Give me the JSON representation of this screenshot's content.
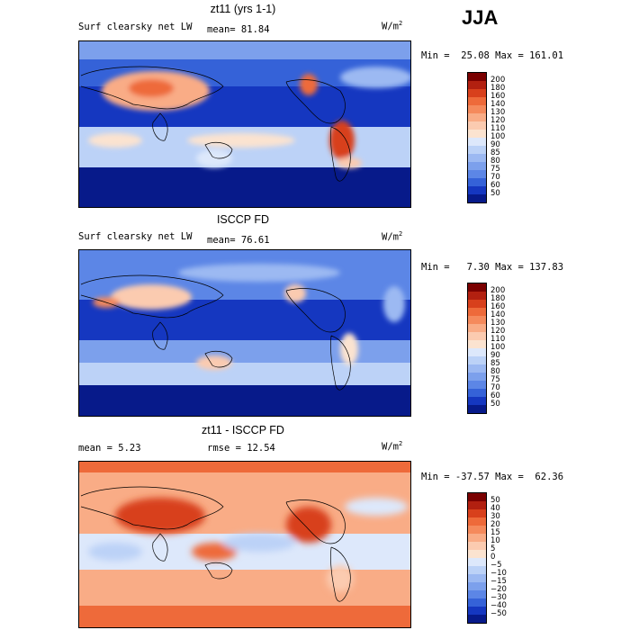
{
  "season": "JJA",
  "panels": [
    {
      "title": "zt11 (yrs 1-1)",
      "left_label": "Surf clearsky net LW",
      "mean_label": "mean=  81.84",
      "units": "W/m",
      "units_sup": "2",
      "minmax": "Min =  25.08 Max = 161.01",
      "scale": "abs",
      "levels": [
        "200",
        "180",
        "160",
        "140",
        "130",
        "120",
        "110",
        "100",
        "90",
        "85",
        "80",
        "75",
        "70",
        "60",
        "50"
      ],
      "colors": [
        "#7a0000",
        "#b22010",
        "#d8401c",
        "#ee6a3a",
        "#f58a5c",
        "#f9ac86",
        "#fbcbb0",
        "#fbe3d0",
        "#dde8fb",
        "#bcd2f7",
        "#9cb9f2",
        "#7ca0ec",
        "#5c86e6",
        "#3562d8",
        "#1537c0",
        "#071a8a"
      ]
    },
    {
      "title": "ISCCP FD",
      "left_label": "Surf clearsky net LW",
      "mean_label": "mean=  76.61",
      "units": "W/m",
      "units_sup": "2",
      "minmax": "Min =   7.30 Max = 137.83",
      "scale": "abs",
      "levels": [
        "200",
        "180",
        "160",
        "140",
        "130",
        "120",
        "110",
        "100",
        "90",
        "85",
        "80",
        "75",
        "70",
        "60",
        "50"
      ],
      "colors": [
        "#7a0000",
        "#b22010",
        "#d8401c",
        "#ee6a3a",
        "#f58a5c",
        "#f9ac86",
        "#fbcbb0",
        "#fbe3d0",
        "#dde8fb",
        "#bcd2f7",
        "#9cb9f2",
        "#7ca0ec",
        "#5c86e6",
        "#3562d8",
        "#1537c0",
        "#071a8a"
      ]
    },
    {
      "title": "zt11 - ISCCP FD",
      "left_label": "mean =   5.23",
      "mean_label": "rmse =  12.54",
      "units": "W/m",
      "units_sup": "2",
      "minmax": "Min = -37.57 Max =  62.36",
      "scale": "diff",
      "levels": [
        "50",
        "40",
        "30",
        "20",
        "15",
        "10",
        "5",
        "0",
        "−5",
        "−10",
        "−15",
        "−20",
        "−30",
        "−40",
        "−50"
      ],
      "colors": [
        "#7a0000",
        "#b22010",
        "#d8401c",
        "#ee6a3a",
        "#f58a5c",
        "#f9ac86",
        "#fbcbb0",
        "#fbe3d0",
        "#dde8fb",
        "#bcd2f7",
        "#9cb9f2",
        "#7ca0ec",
        "#5c86e6",
        "#3562d8",
        "#1537c0",
        "#071a8a"
      ]
    }
  ]
}
